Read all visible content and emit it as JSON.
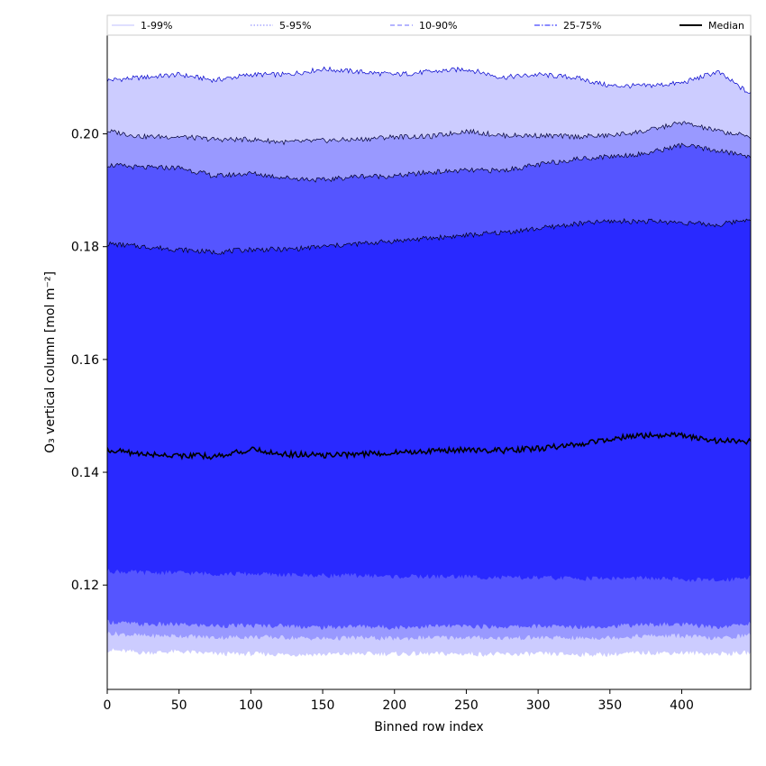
{
  "chart_data": {
    "type": "area",
    "xlabel": "Binned row index",
    "ylabel": "O₃ vertical column [mol m⁻²]",
    "xlim": [
      0,
      448
    ],
    "ylim": [
      0.1015,
      0.2175
    ],
    "xticks": [
      0,
      50,
      100,
      150,
      200,
      250,
      300,
      350,
      400
    ],
    "yticks": [
      0.12,
      0.14,
      0.16,
      0.18,
      0.2
    ],
    "ytick_labels": [
      "0.12",
      "0.14",
      "0.16",
      "0.18",
      "0.20"
    ],
    "legend_position": "top, above plot",
    "x": [
      0,
      25,
      50,
      75,
      100,
      125,
      150,
      175,
      200,
      225,
      250,
      275,
      300,
      325,
      350,
      375,
      400,
      425,
      448
    ],
    "bands": [
      {
        "name": "1-99%",
        "fill": "#ccccff",
        "line_color": "#0000cc",
        "line_style": "solid",
        "lower": [
          0.1085,
          0.108,
          0.1082,
          0.1078,
          0.1078,
          0.1077,
          0.1077,
          0.1078,
          0.1078,
          0.1078,
          0.1078,
          0.1077,
          0.1078,
          0.1077,
          0.1077,
          0.108,
          0.108,
          0.1078,
          0.108
        ],
        "upper": [
          0.2095,
          0.21,
          0.2105,
          0.2095,
          0.2105,
          0.2105,
          0.2115,
          0.211,
          0.2105,
          0.211,
          0.2115,
          0.21,
          0.2105,
          0.21,
          0.2085,
          0.2085,
          0.209,
          0.211,
          0.207
        ]
      },
      {
        "name": "5-95%",
        "fill": "#9999ff",
        "line_color": "#000033",
        "line_style": "solid",
        "lower": [
          0.1115,
          0.111,
          0.111,
          0.1107,
          0.1108,
          0.1107,
          0.1105,
          0.1107,
          0.1105,
          0.1107,
          0.1107,
          0.1106,
          0.1107,
          0.1106,
          0.1107,
          0.111,
          0.111,
          0.1105,
          0.1112
        ],
        "upper": [
          0.2005,
          0.1995,
          0.1995,
          0.199,
          0.199,
          0.1985,
          0.1988,
          0.199,
          0.1995,
          0.1995,
          0.2005,
          0.1997,
          0.1997,
          0.1995,
          0.1997,
          0.2005,
          0.202,
          0.2005,
          0.1995
        ]
      },
      {
        "name": "10-90%",
        "fill": "#5555ff",
        "line_color": "#000022",
        "line_style": "solid",
        "lower": [
          0.1135,
          0.113,
          0.113,
          0.1128,
          0.1128,
          0.1128,
          0.1125,
          0.1127,
          0.1125,
          0.1127,
          0.1127,
          0.1126,
          0.1127,
          0.1126,
          0.1127,
          0.113,
          0.113,
          0.1125,
          0.1132
        ],
        "upper": [
          0.1945,
          0.194,
          0.194,
          0.1925,
          0.193,
          0.1922,
          0.1918,
          0.1925,
          0.1925,
          0.1932,
          0.1935,
          0.1935,
          0.1945,
          0.1955,
          0.196,
          0.1965,
          0.198,
          0.197,
          0.196
        ]
      },
      {
        "name": "25-75%",
        "fill": "#2929ff",
        "line_color": "#000011",
        "line_style": "solid",
        "lower": [
          0.1225,
          0.1222,
          0.1222,
          0.122,
          0.122,
          0.1218,
          0.1217,
          0.1217,
          0.1215,
          0.1215,
          0.1215,
          0.1213,
          0.1213,
          0.1212,
          0.1212,
          0.1212,
          0.121,
          0.1208,
          0.1215
        ],
        "upper": [
          0.1805,
          0.18,
          0.1795,
          0.179,
          0.1795,
          0.1795,
          0.18,
          0.1805,
          0.181,
          0.1815,
          0.182,
          0.1825,
          0.1832,
          0.184,
          0.1845,
          0.1845,
          0.1843,
          0.1838,
          0.185
        ]
      }
    ],
    "median": {
      "name": "Median",
      "color": "#000000",
      "values": [
        0.144,
        0.1432,
        0.143,
        0.1428,
        0.144,
        0.1432,
        0.143,
        0.1432,
        0.1435,
        0.1438,
        0.144,
        0.1438,
        0.1442,
        0.1448,
        0.146,
        0.1465,
        0.1465,
        0.1455,
        0.1455
      ]
    },
    "legend": [
      {
        "label": "1-99%",
        "color": "#ccccff",
        "style": "solid"
      },
      {
        "label": "5-95%",
        "color": "#9999ff",
        "style": "dotted"
      },
      {
        "label": "10-90%",
        "color": "#8888ff",
        "style": "dashed"
      },
      {
        "label": "25-75%",
        "color": "#4444ff",
        "style": "dashdot"
      },
      {
        "label": "Median",
        "color": "#000000",
        "style": "solid"
      }
    ]
  }
}
